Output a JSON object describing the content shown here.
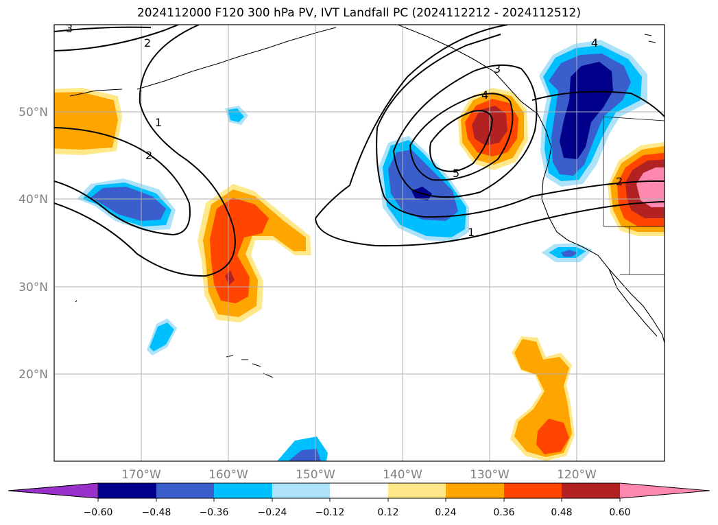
{
  "title": "2024112000 F120 300 hPa PV, IVT Landfall PC (2024112212 - 2024112512)",
  "map": {
    "lon_range": [
      -180,
      -110
    ],
    "lat_range": [
      10,
      60
    ],
    "lon_ticks": [
      "170°W",
      "160°W",
      "150°W",
      "140°W",
      "130°W",
      "120°W"
    ],
    "lat_ticks": [
      "50°N",
      "40°N",
      "30°N",
      "20°N"
    ],
    "grid": true,
    "contour_labels": [
      "3",
      "2",
      "1",
      "2",
      "3",
      "4",
      "5",
      "4",
      "1",
      "2"
    ]
  },
  "colorbar": {
    "ticks": [
      "−0.60",
      "−0.48",
      "−0.36",
      "−0.24",
      "−0.12",
      "0.12",
      "0.24",
      "0.36",
      "0.48",
      "0.60"
    ],
    "colors": [
      "#9932cc",
      "#00008b",
      "#3a5fcd",
      "#00bfff",
      "#aee2f8",
      "#ffffff",
      "#ffe88a",
      "#ffa500",
      "#ff4500",
      "#b22222",
      "#ff88b0"
    ],
    "extend": "both"
  }
}
